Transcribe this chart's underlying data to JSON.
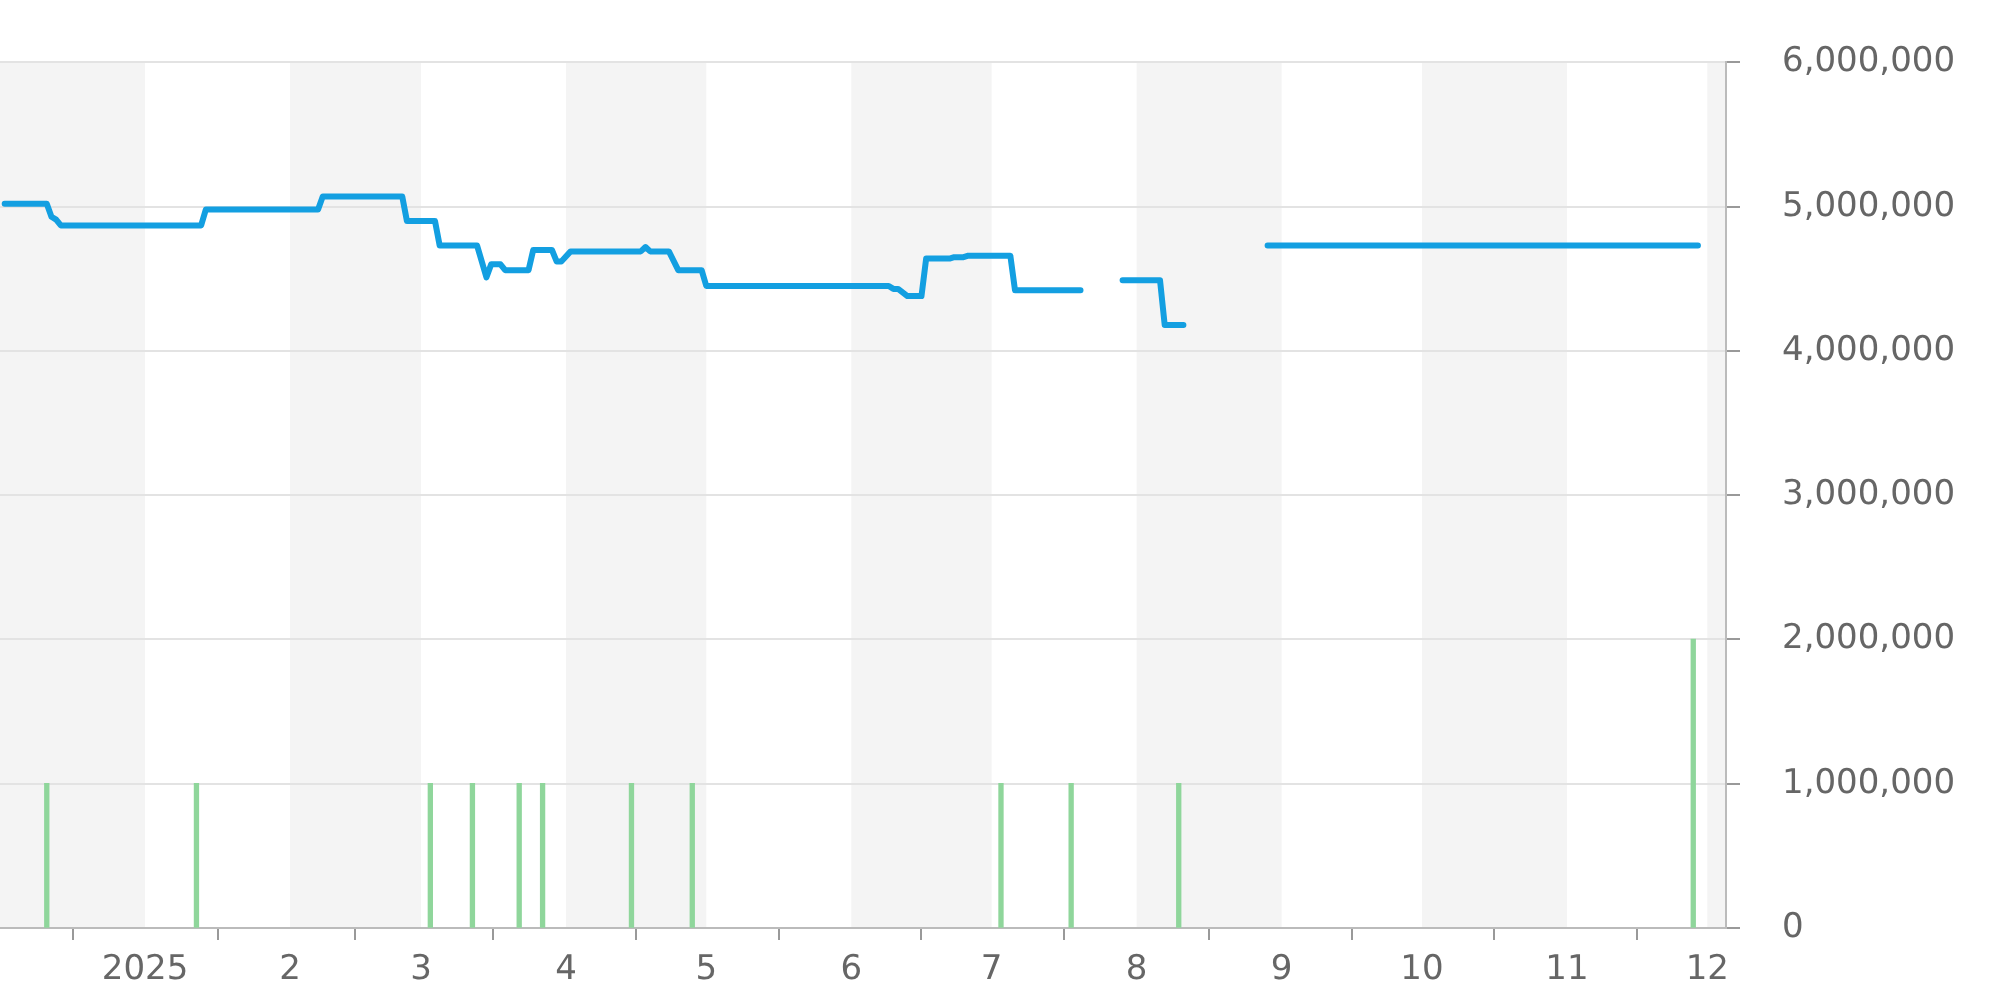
{
  "chart_data": {
    "type": "line",
    "xlim": [
      "2024-12-01",
      "2025-12-05"
    ],
    "xticks": [
      {
        "value": "2025-01-01",
        "label": "2025"
      },
      {
        "value": "2025-02-01",
        "label": "2"
      },
      {
        "value": "2025-03-01",
        "label": "3"
      },
      {
        "value": "2025-04-01",
        "label": "4"
      },
      {
        "value": "2025-05-01",
        "label": "5"
      },
      {
        "value": "2025-06-01",
        "label": "6"
      },
      {
        "value": "2025-07-01",
        "label": "7"
      },
      {
        "value": "2025-08-01",
        "label": "8"
      },
      {
        "value": "2025-09-01",
        "label": "9"
      },
      {
        "value": "2025-10-01",
        "label": "10"
      },
      {
        "value": "2025-11-01",
        "label": "11"
      },
      {
        "value": "2025-12-01",
        "label": "12"
      }
    ],
    "ylim": [
      0,
      6000000
    ],
    "yticks": [
      0,
      {
        "value": 1000000,
        "label": "1,000,000"
      },
      {
        "value": 2000000,
        "label": "2,000,000"
      },
      {
        "value": 3000000,
        "label": "3,000,000"
      },
      {
        "value": 4000000,
        "label": "4,000,000"
      },
      {
        "value": 5000000,
        "label": "5,000,000"
      },
      {
        "value": 6000000,
        "label": "6,000,000"
      }
    ],
    "grid": "y",
    "bands": [
      {
        "axis": "x",
        "from": "2024-12-01",
        "to": "2025-01-01",
        "color": "#f4f4f4"
      },
      {
        "axis": "x",
        "from": "2025-02-01",
        "to": "2025-03-01",
        "color": "#f4f4f4"
      },
      {
        "axis": "x",
        "from": "2025-04-01",
        "to": "2025-05-01",
        "color": "#f4f4f4"
      },
      {
        "axis": "x",
        "from": "2025-06-01",
        "to": "2025-07-01",
        "color": "#f4f4f4"
      },
      {
        "axis": "x",
        "from": "2025-08-01",
        "to": "2025-09-01",
        "color": "#f4f4f4"
      },
      {
        "axis": "x",
        "from": "2025-10-01",
        "to": "2025-11-01",
        "color": "#f4f4f4"
      },
      {
        "axis": "x",
        "from": "2025-12-01",
        "to": "2025-12-05",
        "color": "#f4f4f4"
      }
    ],
    "series": [
      {
        "color": "#139fe1",
        "x": [
          "2024-12-02",
          "2024-12-11",
          "2024-12-12",
          "2024-12-13",
          "2024-12-14",
          "2025-01-13",
          "2025-01-14",
          "2025-02-07",
          "2025-02-08",
          "2025-02-25",
          "2025-02-26",
          "2025-03-04",
          "2025-03-05",
          "2025-03-13",
          "2025-03-15",
          "2025-03-16",
          "2025-03-18",
          "2025-03-19",
          "2025-03-24",
          "2025-03-25",
          "2025-03-29",
          "2025-03-30",
          "2025-03-31",
          "2025-04-02",
          "2025-04-17",
          "2025-04-18",
          "2025-04-19",
          "2025-04-23",
          "2025-04-25",
          "2025-04-30",
          "2025-05-01",
          "2025-06-09",
          "2025-06-10",
          "2025-06-11",
          "2025-06-13",
          "2025-06-16",
          "2025-06-17",
          "2025-06-22",
          "2025-06-23",
          "2025-06-25",
          "2025-06-26",
          "2025-07-05",
          "2025-07-06",
          "2025-07-20",
          "2025-07-25",
          "2025-07-29",
          "2025-08-06",
          "2025-08-07",
          "2025-08-11",
          "2025-08-20",
          "2025-08-29",
          "2025-11-29"
        ],
        "values": [
          5020000,
          5020000,
          4930000,
          4910000,
          4870000,
          4870000,
          4980000,
          4980000,
          5070000,
          5070000,
          4900000,
          4900000,
          4730000,
          4730000,
          4510000,
          4600000,
          4600000,
          4560000,
          4560000,
          4700000,
          4700000,
          4620000,
          4620000,
          4690000,
          4690000,
          4720000,
          4690000,
          4690000,
          4560000,
          4560000,
          4450000,
          4450000,
          4430000,
          4430000,
          4380000,
          4380000,
          4640000,
          4640000,
          4650000,
          4650000,
          4660000,
          4660000,
          4420000,
          4420000,
          null,
          4490000,
          4490000,
          4180000,
          4180000,
          null,
          4730000,
          4730000
        ]
      },
      {
        "type": "bar",
        "color": "#8fd69b",
        "x": [
          "2024-12-11",
          "2025-01-12",
          "2025-03-03",
          "2025-03-12",
          "2025-03-22",
          "2025-03-27",
          "2025-04-15",
          "2025-04-28",
          "2025-07-03",
          "2025-07-18",
          "2025-08-10",
          "2025-11-28"
        ],
        "values": [
          1000000,
          1000000,
          1000000,
          1000000,
          1000000,
          1000000,
          1000000,
          1000000,
          1000000,
          1000000,
          1000000,
          2000000
        ]
      }
    ]
  }
}
